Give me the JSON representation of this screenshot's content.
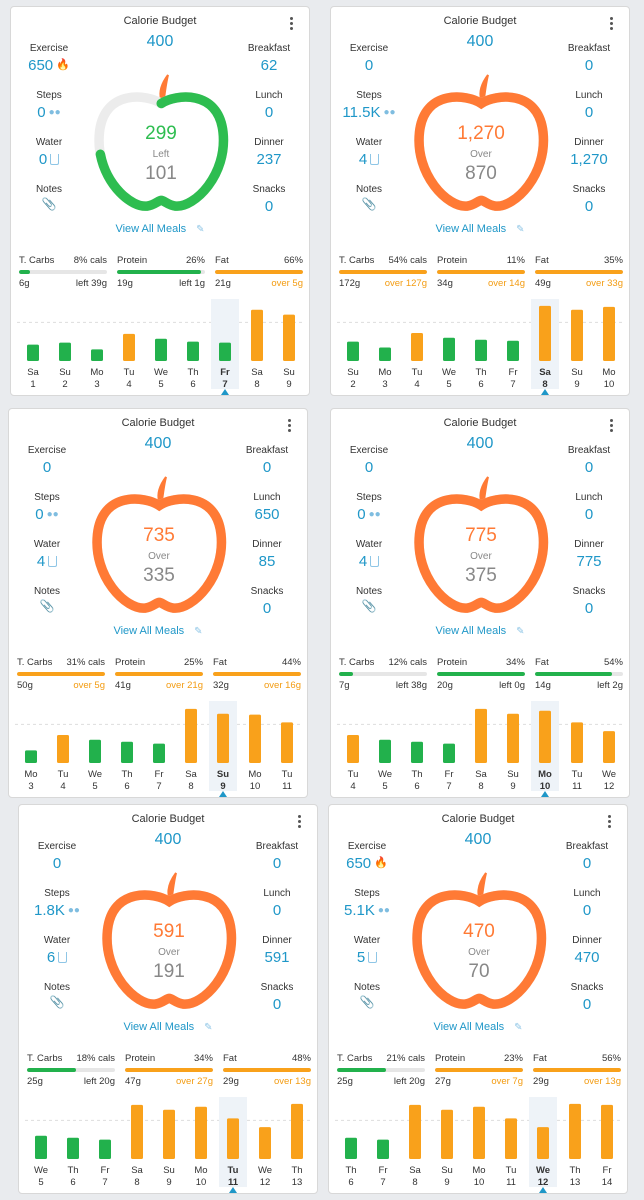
{
  "labels": {
    "calorie_budget": "Calorie Budget",
    "exercise": "Exercise",
    "steps": "Steps",
    "water": "Water",
    "notes": "Notes",
    "breakfast": "Breakfast",
    "lunch": "Lunch",
    "dinner": "Dinner",
    "snacks": "Snacks",
    "view_all_meals": "View All Meals",
    "carbs": "T. Carbs",
    "protein": "Protein",
    "fat": "Fat"
  },
  "colors": {
    "blue": "#1f97c8",
    "green": "#2ebd50",
    "orange": "#ff7a35",
    "bar_orange": "#f9a11b",
    "bar_green": "#22b14c",
    "over_text": "#f39c12",
    "grey": "#888888"
  },
  "cards": [
    {
      "budget": "400",
      "exercise": "650",
      "exercise_flame": true,
      "steps": "0",
      "water": "0",
      "breakfast": "62",
      "lunch": "0",
      "dinner": "237",
      "snacks": "0",
      "center_value": "299",
      "status": "Left",
      "remaining": "101",
      "state": "under",
      "progress": 0.75,
      "macros": [
        {
          "pct": "8% cals",
          "grams": "6g",
          "note": "left 39g",
          "over": false,
          "fill": 0.13
        },
        {
          "pct": "26%",
          "grams": "19g",
          "note": "left 1g",
          "over": false,
          "fill": 0.95
        },
        {
          "pct": "66%",
          "grams": "21g",
          "note": "over 5g",
          "over": true,
          "fill": 1.0
        }
      ],
      "chart_data": {
        "type": "bar",
        "days": [
          "Sa",
          "Su",
          "Mo",
          "Tu",
          "We",
          "Th",
          "Fr",
          "Sa",
          "Su"
        ],
        "dates": [
          "1",
          "2",
          "3",
          "4",
          "5",
          "6",
          "7",
          "8",
          "9"
        ],
        "values": [
          170,
          190,
          120,
          280,
          230,
          200,
          190,
          530,
          480
        ],
        "over": [
          false,
          false,
          false,
          true,
          false,
          false,
          false,
          true,
          true
        ],
        "selected_index": 6,
        "budget_line": 400
      }
    },
    {
      "budget": "400",
      "exercise": "0",
      "exercise_flame": false,
      "steps": "11.5K",
      "water": "4",
      "breakfast": "0",
      "lunch": "0",
      "dinner": "1,270",
      "snacks": "0",
      "center_value": "1,270",
      "status": "Over",
      "remaining": "870",
      "state": "over",
      "progress": 1.0,
      "macros": [
        {
          "pct": "54% cals",
          "grams": "172g",
          "note": "over 127g",
          "over": true,
          "fill": 1.0
        },
        {
          "pct": "11%",
          "grams": "34g",
          "note": "over 14g",
          "over": true,
          "fill": 1.0
        },
        {
          "pct": "35%",
          "grams": "49g",
          "note": "over 33g",
          "over": true,
          "fill": 1.0
        }
      ],
      "chart_data": {
        "type": "bar",
        "days": [
          "Su",
          "Mo",
          "Tu",
          "We",
          "Th",
          "Fr",
          "Sa",
          "Su",
          "Mo"
        ],
        "dates": [
          "2",
          "3",
          "4",
          "5",
          "6",
          "7",
          "8",
          "9",
          "10"
        ],
        "values": [
          200,
          140,
          290,
          240,
          220,
          210,
          570,
          530,
          560
        ],
        "over": [
          false,
          false,
          true,
          false,
          false,
          false,
          true,
          true,
          true
        ],
        "selected_index": 6,
        "budget_line": 400
      }
    },
    {
      "budget": "400",
      "exercise": "0",
      "exercise_flame": false,
      "steps": "0",
      "water": "4",
      "breakfast": "0",
      "lunch": "650",
      "dinner": "85",
      "snacks": "0",
      "center_value": "735",
      "status": "Over",
      "remaining": "335",
      "state": "over",
      "progress": 1.0,
      "macros": [
        {
          "pct": "31% cals",
          "grams": "50g",
          "note": "over 5g",
          "over": true,
          "fill": 1.0
        },
        {
          "pct": "25%",
          "grams": "41g",
          "note": "over 21g",
          "over": true,
          "fill": 1.0
        },
        {
          "pct": "44%",
          "grams": "32g",
          "note": "over 16g",
          "over": true,
          "fill": 1.0
        }
      ],
      "chart_data": {
        "type": "bar",
        "days": [
          "Mo",
          "Tu",
          "We",
          "Th",
          "Fr",
          "Sa",
          "Su",
          "Mo",
          "Tu"
        ],
        "dates": [
          "3",
          "4",
          "5",
          "6",
          "7",
          "8",
          "9",
          "10",
          "11"
        ],
        "values": [
          130,
          290,
          240,
          220,
          200,
          560,
          510,
          500,
          420
        ],
        "over": [
          false,
          true,
          false,
          false,
          false,
          true,
          true,
          true,
          true
        ],
        "selected_index": 6,
        "budget_line": 400
      }
    },
    {
      "budget": "400",
      "exercise": "0",
      "exercise_flame": false,
      "steps": "0",
      "water": "4",
      "breakfast": "0",
      "lunch": "0",
      "dinner": "775",
      "snacks": "0",
      "center_value": "775",
      "status": "Over",
      "remaining": "375",
      "state": "over",
      "progress": 1.0,
      "macros": [
        {
          "pct": "12% cals",
          "grams": "7g",
          "note": "left 38g",
          "over": false,
          "fill": 0.16
        },
        {
          "pct": "34%",
          "grams": "20g",
          "note": "left 0g",
          "over": false,
          "fill": 1.0
        },
        {
          "pct": "54%",
          "grams": "14g",
          "note": "left 2g",
          "over": false,
          "fill": 0.88
        }
      ],
      "chart_data": {
        "type": "bar",
        "days": [
          "Tu",
          "We",
          "Th",
          "Fr",
          "Sa",
          "Su",
          "Mo",
          "Tu",
          "We"
        ],
        "dates": [
          "4",
          "5",
          "6",
          "7",
          "8",
          "9",
          "10",
          "11",
          "12"
        ],
        "values": [
          290,
          240,
          220,
          200,
          560,
          510,
          540,
          420,
          330
        ],
        "over": [
          true,
          false,
          false,
          false,
          true,
          true,
          true,
          true,
          true
        ],
        "selected_index": 6,
        "budget_line": 400
      }
    },
    {
      "budget": "400",
      "exercise": "0",
      "exercise_flame": false,
      "steps": "1.8K",
      "water": "6",
      "breakfast": "0",
      "lunch": "0",
      "dinner": "591",
      "snacks": "0",
      "center_value": "591",
      "status": "Over",
      "remaining": "191",
      "state": "over",
      "progress": 1.0,
      "macros": [
        {
          "pct": "18% cals",
          "grams": "25g",
          "note": "left 20g",
          "over": false,
          "fill": 0.56
        },
        {
          "pct": "34%",
          "grams": "47g",
          "note": "over 27g",
          "over": true,
          "fill": 1.0
        },
        {
          "pct": "48%",
          "grams": "29g",
          "note": "over 13g",
          "over": true,
          "fill": 1.0
        }
      ],
      "chart_data": {
        "type": "bar",
        "days": [
          "We",
          "Th",
          "Fr",
          "Sa",
          "Su",
          "Mo",
          "Tu",
          "We",
          "Th"
        ],
        "dates": [
          "5",
          "6",
          "7",
          "8",
          "9",
          "10",
          "11",
          "12",
          "13"
        ],
        "values": [
          240,
          220,
          200,
          560,
          510,
          540,
          420,
          330,
          570
        ],
        "over": [
          false,
          false,
          false,
          true,
          true,
          true,
          true,
          true,
          true
        ],
        "selected_index": 6,
        "budget_line": 400
      }
    },
    {
      "budget": "400",
      "exercise": "650",
      "exercise_flame": true,
      "steps": "5.1K",
      "water": "5",
      "breakfast": "0",
      "lunch": "0",
      "dinner": "470",
      "snacks": "0",
      "center_value": "470",
      "status": "Over",
      "remaining": "70",
      "state": "over",
      "progress": 1.0,
      "macros": [
        {
          "pct": "21% cals",
          "grams": "25g",
          "note": "left 20g",
          "over": false,
          "fill": 0.56
        },
        {
          "pct": "23%",
          "grams": "27g",
          "note": "over 7g",
          "over": true,
          "fill": 1.0
        },
        {
          "pct": "56%",
          "grams": "29g",
          "note": "over 13g",
          "over": true,
          "fill": 1.0
        }
      ],
      "chart_data": {
        "type": "bar",
        "days": [
          "Th",
          "Fr",
          "Sa",
          "Su",
          "Mo",
          "Tu",
          "We",
          "Th",
          "Fr"
        ],
        "dates": [
          "6",
          "7",
          "8",
          "9",
          "10",
          "11",
          "12",
          "13",
          "14"
        ],
        "values": [
          220,
          200,
          560,
          510,
          540,
          420,
          330,
          570,
          560
        ],
        "over": [
          false,
          false,
          true,
          true,
          true,
          true,
          true,
          true,
          true
        ],
        "selected_index": 6,
        "budget_line": 400
      }
    }
  ]
}
